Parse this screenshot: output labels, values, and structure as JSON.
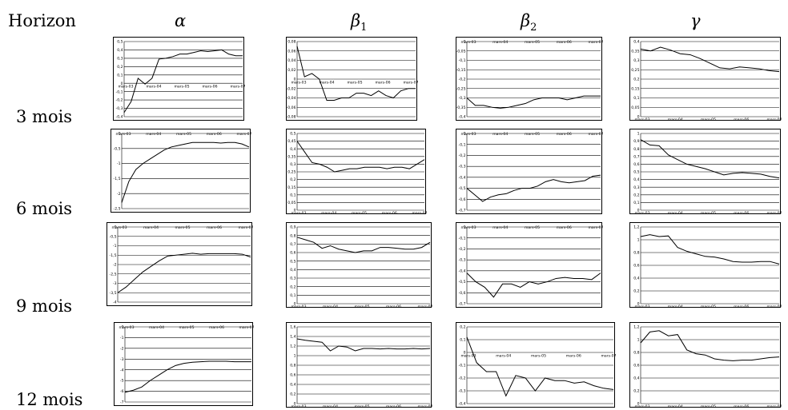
{
  "header": {
    "horizon": "Horizon",
    "alpha": "α",
    "beta": "β",
    "gamma": "γ",
    "sub1": "1",
    "sub2": "2"
  },
  "rows": [
    "3 mois",
    "6 mois",
    "9 mois",
    "12 mois"
  ],
  "x_labels": [
    "mars-03",
    "mars-04",
    "mars-05",
    "mars-06",
    "mars-07"
  ],
  "chart_data": [
    {
      "type": "line",
      "row": "3 mois",
      "column": "α",
      "ylim": [
        -0.4,
        0.5
      ],
      "yticks": [
        0.5,
        0.4,
        0.3,
        0.2,
        0.1,
        0,
        -0.1,
        -0.2,
        -0.3,
        -0.4
      ],
      "grid": true,
      "xaxis_at": "zero",
      "values": [
        -0.35,
        -0.22,
        0.06,
        -0.01,
        0.06,
        0.29,
        0.3,
        0.32,
        0.35,
        0.35,
        0.37,
        0.39,
        0.38,
        0.39,
        0.4,
        0.35,
        0.33,
        0.33
      ]
    },
    {
      "type": "line",
      "row": "3 mois",
      "column": "β1",
      "ylim": [
        -0.08,
        0.08
      ],
      "yticks": [
        0.08,
        0.06,
        0.04,
        0.02,
        0,
        -0.02,
        -0.04,
        -0.06,
        -0.08
      ],
      "grid": true,
      "xaxis_at": "zero",
      "values": [
        0.07,
        0.005,
        0.012,
        0.0,
        -0.045,
        -0.045,
        -0.04,
        -0.04,
        -0.03,
        -0.03,
        -0.035,
        -0.025,
        -0.035,
        -0.04,
        -0.025,
        -0.02,
        -0.02
      ]
    },
    {
      "type": "line",
      "row": "3 mois",
      "column": "β2",
      "ylim": [
        -0.4,
        0
      ],
      "yticks": [
        0,
        -0.05,
        -0.1,
        -0.15,
        -0.2,
        -0.25,
        -0.3,
        -0.35,
        -0.4
      ],
      "grid": true,
      "xaxis_at": "top",
      "values": [
        -0.3,
        -0.34,
        -0.34,
        -0.35,
        -0.355,
        -0.35,
        -0.34,
        -0.33,
        -0.31,
        -0.3,
        -0.3,
        -0.3,
        -0.31,
        -0.3,
        -0.29,
        -0.29,
        -0.29
      ]
    },
    {
      "type": "line",
      "row": "3 mois",
      "column": "γ",
      "ylim": [
        0,
        0.4
      ],
      "yticks": [
        0.4,
        0.35,
        0.3,
        0.25,
        0.2,
        0.15,
        0.1,
        0.05,
        0
      ],
      "grid": true,
      "xaxis_at": "bottom",
      "values": [
        0.36,
        0.35,
        0.37,
        0.355,
        0.335,
        0.33,
        0.31,
        0.285,
        0.26,
        0.255,
        0.265,
        0.26,
        0.255,
        0.245,
        0.24
      ]
    },
    {
      "type": "line",
      "row": "6 mois",
      "column": "α",
      "ylim": [
        -2.5,
        0
      ],
      "yticks": [
        0,
        -0.5,
        -1,
        -1.5,
        -2,
        -2.5
      ],
      "grid": true,
      "xaxis_at": "top",
      "values": [
        -2.3,
        -1.6,
        -1.2,
        -1.0,
        -0.85,
        -0.7,
        -0.55,
        -0.45,
        -0.4,
        -0.35,
        -0.3,
        -0.3,
        -0.3,
        -0.3,
        -0.32,
        -0.3,
        -0.3,
        -0.35,
        -0.45
      ]
    },
    {
      "type": "line",
      "row": "6 mois",
      "column": "β1",
      "ylim": [
        0,
        0.5
      ],
      "yticks": [
        0.5,
        0.45,
        0.4,
        0.35,
        0.3,
        0.25,
        0.2,
        0.15,
        0.1,
        0.05,
        0
      ],
      "grid": true,
      "xaxis_at": "bottom",
      "values": [
        0.45,
        0.38,
        0.31,
        0.3,
        0.28,
        0.25,
        0.26,
        0.27,
        0.27,
        0.28,
        0.28,
        0.28,
        0.27,
        0.28,
        0.28,
        0.27,
        0.3,
        0.33
      ]
    },
    {
      "type": "line",
      "row": "6 mois",
      "column": "β2",
      "ylim": [
        -0.7,
        0
      ],
      "yticks": [
        0,
        -0.1,
        -0.2,
        -0.3,
        -0.4,
        -0.5,
        -0.6,
        -0.7
      ],
      "grid": true,
      "xaxis_at": "top",
      "values": [
        -0.5,
        -0.56,
        -0.62,
        -0.58,
        -0.56,
        -0.55,
        -0.52,
        -0.5,
        -0.5,
        -0.48,
        -0.44,
        -0.42,
        -0.44,
        -0.45,
        -0.44,
        -0.43,
        -0.39,
        -0.38
      ]
    },
    {
      "type": "line",
      "row": "6 mois",
      "column": "γ",
      "ylim": [
        0,
        1
      ],
      "yticks": [
        1,
        0.9,
        0.8,
        0.7,
        0.6,
        0.5,
        0.4,
        0.3,
        0.2,
        0.1,
        0
      ],
      "grid": true,
      "xaxis_at": "bottom",
      "values": [
        0.92,
        0.85,
        0.84,
        0.72,
        0.66,
        0.6,
        0.57,
        0.54,
        0.5,
        0.46,
        0.48,
        0.49,
        0.48,
        0.47,
        0.44,
        0.42
      ]
    },
    {
      "type": "line",
      "row": "9 mois",
      "column": "α",
      "ylim": [
        -4,
        0
      ],
      "yticks": [
        0,
        -0.5,
        -1,
        -1.5,
        -2,
        -2.5,
        -3,
        -3.5,
        -4
      ],
      "grid": true,
      "xaxis_at": "top",
      "values": [
        -3.5,
        -3.2,
        -2.8,
        -2.4,
        -2.1,
        -1.8,
        -1.55,
        -1.5,
        -1.45,
        -1.4,
        -1.45,
        -1.42,
        -1.42,
        -1.42,
        -1.42,
        -1.45,
        -1.6
      ]
    },
    {
      "type": "line",
      "row": "9 mois",
      "column": "β1",
      "ylim": [
        0,
        0.9
      ],
      "yticks": [
        0.9,
        0.8,
        0.7,
        0.6,
        0.5,
        0.4,
        0.3,
        0.2,
        0.1,
        0
      ],
      "grid": true,
      "xaxis_at": "bottom",
      "values": [
        0.78,
        0.75,
        0.72,
        0.65,
        0.68,
        0.64,
        0.62,
        0.6,
        0.62,
        0.62,
        0.66,
        0.66,
        0.65,
        0.64,
        0.64,
        0.66,
        0.72
      ]
    },
    {
      "type": "line",
      "row": "9 mois",
      "column": "β2",
      "ylim": [
        -0.7,
        0
      ],
      "yticks": [
        0,
        -0.1,
        -0.2,
        -0.3,
        -0.4,
        -0.5,
        -0.6,
        -0.7
      ],
      "grid": true,
      "xaxis_at": "top",
      "values": [
        -0.42,
        -0.5,
        -0.55,
        -0.64,
        -0.52,
        -0.52,
        -0.55,
        -0.5,
        -0.52,
        -0.5,
        -0.47,
        -0.46,
        -0.47,
        -0.47,
        -0.48,
        -0.42
      ]
    },
    {
      "type": "line",
      "row": "9 mois",
      "column": "γ",
      "ylim": [
        0,
        1.2
      ],
      "yticks": [
        1.2,
        1,
        0.8,
        0.6,
        0.4,
        0.2,
        0
      ],
      "grid": true,
      "xaxis_at": "bottom",
      "values": [
        1.05,
        1.08,
        1.05,
        1.06,
        0.88,
        0.82,
        0.78,
        0.74,
        0.73,
        0.7,
        0.66,
        0.65,
        0.65,
        0.66,
        0.66,
        0.62
      ]
    },
    {
      "type": "line",
      "row": "12 mois",
      "column": "α",
      "ylim": [
        -7,
        0
      ],
      "yticks": [
        0,
        -1,
        -2,
        -3,
        -4,
        -5,
        -6,
        -7
      ],
      "grid": true,
      "xaxis_at": "top",
      "values": [
        -6.1,
        -5.9,
        -5.6,
        -5.0,
        -4.5,
        -4.0,
        -3.6,
        -3.4,
        -3.3,
        -3.25,
        -3.2,
        -3.2,
        -3.2,
        -3.25,
        -3.25,
        -3.25
      ]
    },
    {
      "type": "line",
      "row": "12 mois",
      "column": "β1",
      "ylim": [
        0,
        1.6
      ],
      "yticks": [
        1.6,
        1.4,
        1.2,
        1,
        0.8,
        0.6,
        0.4,
        0.2,
        0
      ],
      "grid": true,
      "xaxis_at": "bottom",
      "values": [
        1.35,
        1.32,
        1.3,
        1.28,
        1.1,
        1.2,
        1.18,
        1.1,
        1.15,
        1.15,
        1.14,
        1.15,
        1.14,
        1.14,
        1.15,
        1.14,
        1.15
      ]
    },
    {
      "type": "line",
      "row": "12 mois",
      "column": "β2",
      "ylim": [
        -0.4,
        0.2
      ],
      "yticks": [
        0.2,
        0.1,
        0,
        -0.1,
        -0.2,
        -0.3,
        -0.4
      ],
      "grid": true,
      "xaxis_at": "zero",
      "values": [
        0.12,
        -0.08,
        -0.15,
        -0.15,
        -0.34,
        -0.18,
        -0.2,
        -0.3,
        -0.2,
        -0.22,
        -0.22,
        -0.24,
        -0.23,
        -0.26,
        -0.28,
        -0.29
      ]
    },
    {
      "type": "line",
      "row": "12 mois",
      "column": "γ",
      "ylim": [
        0,
        1.2
      ],
      "yticks": [
        1.2,
        1,
        0.8,
        0.6,
        0.4,
        0.2,
        0
      ],
      "grid": true,
      "xaxis_at": "bottom",
      "values": [
        0.95,
        1.12,
        1.14,
        1.06,
        1.08,
        0.84,
        0.78,
        0.76,
        0.7,
        0.68,
        0.67,
        0.68,
        0.68,
        0.7,
        0.72,
        0.73
      ]
    }
  ]
}
